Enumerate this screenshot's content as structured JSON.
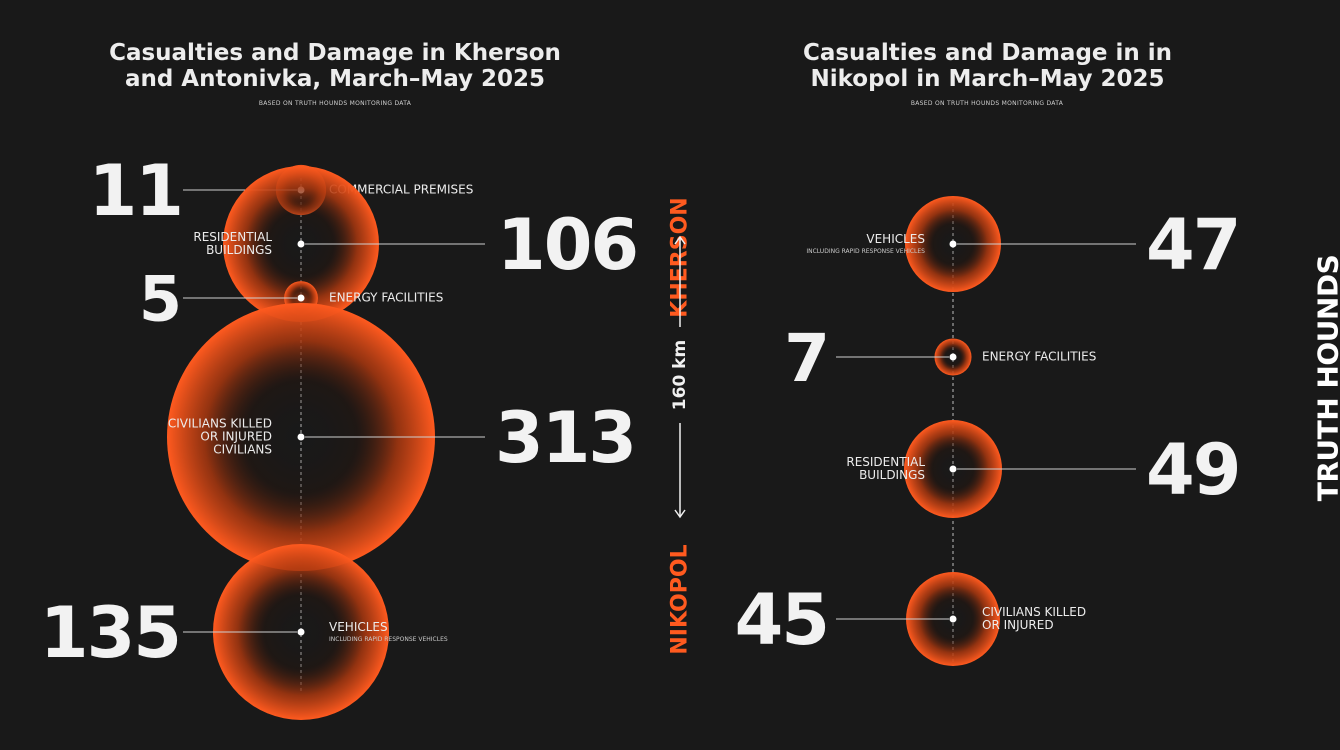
{
  "colors": {
    "background": "#191919",
    "accent": "#ff5a1f",
    "text": "#ececec"
  },
  "left_panel": {
    "title": "Casualties and Damage in Kherson and Antonivka, March–May 2025",
    "subtitle": "BASED ON TRUTH HOUNDS MONITORING DATA"
  },
  "right_panel": {
    "title": "Casualties and Damage in in Nikopol in March–May 2025",
    "subtitle": "BASED ON TRUTH HOUNDS MONITORING DATA"
  },
  "route": {
    "top_city": "KHERSON",
    "bottom_city": "NIKOPOL",
    "distance": "160 km"
  },
  "brand": "TRUTH HOUNDS",
  "chart_data": [
    {
      "type": "bubble",
      "title": "Casualties and Damage in Kherson and Antonivka, March–May 2025",
      "series": [
        {
          "value": 11,
          "label": "COMMERCIAL PREMISES",
          "sublabel": ""
        },
        {
          "value": 106,
          "label": "RESIDENTIAL BUILDINGS",
          "sublabel": ""
        },
        {
          "value": 5,
          "label": "ENERGY FACILITIES",
          "sublabel": ""
        },
        {
          "value": 313,
          "label": "CIVILIANS KILLED OR INJURED CIVILIANS",
          "sublabel": ""
        },
        {
          "value": 135,
          "label": "VEHICLES",
          "sublabel": "INCLUDING RAPID RESPONSE VEHICLES"
        }
      ]
    },
    {
      "type": "bubble",
      "title": "Casualties and Damage in in Nikopol in March–May 2025",
      "series": [
        {
          "value": 47,
          "label": "VEHICLES",
          "sublabel": "INCLUDING RAPID RESPONSE VEHICLES"
        },
        {
          "value": 7,
          "label": "ENERGY FACILITIES",
          "sublabel": ""
        },
        {
          "value": 49,
          "label": "RESIDENTIAL BUILDINGS",
          "sublabel": ""
        },
        {
          "value": 45,
          "label": "CIVILIANS KILLED OR INJURED",
          "sublabel": ""
        }
      ]
    }
  ]
}
